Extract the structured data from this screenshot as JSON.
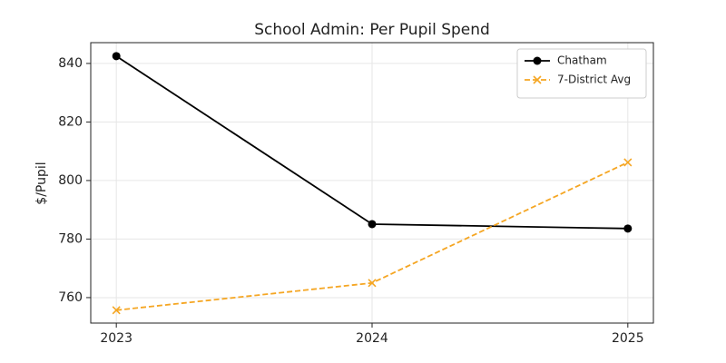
{
  "chart_data": {
    "type": "line",
    "title": "School Admin: Per Pupil Spend",
    "y_label": "$/Pupil",
    "x": [
      2023,
      2024,
      2025
    ],
    "series": [
      {
        "name": "Chatham",
        "color": "#000000",
        "marker": "circle",
        "linestyle": "solid",
        "values": [
          842.5,
          785.1,
          783.6
        ]
      },
      {
        "name": "7-District Avg",
        "color": "#f5a623",
        "marker": "x",
        "linestyle": "dashed",
        "values": [
          755.7,
          765.0,
          806.2
        ]
      }
    ],
    "xlim": [
      2022.9,
      2025.1
    ],
    "xticks": [
      2023,
      2024,
      2025
    ],
    "ylim": [
      751.3,
      847.1
    ],
    "yticks": [
      760,
      780,
      800,
      820,
      840
    ],
    "grid": true,
    "legend": "upper right"
  }
}
